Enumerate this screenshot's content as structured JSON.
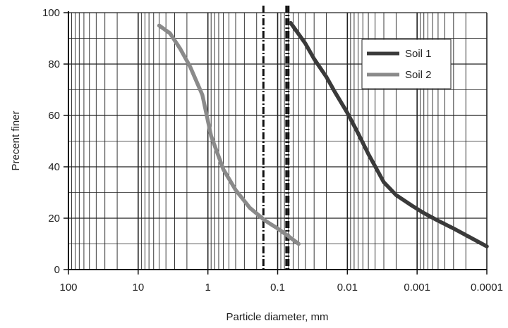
{
  "chart_data": {
    "type": "line",
    "xlabel": "Particle diameter, mm",
    "ylabel": "Precent finer",
    "x_scale": "log",
    "x_reversed": true,
    "xlim": [
      100,
      0.0001
    ],
    "ylim": [
      0,
      100
    ],
    "x_tick_labels": [
      "100",
      "10",
      "1",
      "0.1",
      "0.01",
      "0.001",
      "0.0001"
    ],
    "x_tick_values": [
      100,
      10,
      1,
      0.1,
      0.01,
      0.001,
      0.0001
    ],
    "y_tick_labels": [
      "0",
      "20",
      "40",
      "60",
      "80",
      "100"
    ],
    "y_tick_values": [
      0,
      20,
      40,
      60,
      80,
      100
    ],
    "grid": true,
    "legend_position": "top-right",
    "vertical_reference_lines": [
      {
        "x": 0.16,
        "style": "dash-dot"
      },
      {
        "x": 0.075,
        "style": "dash-dot"
      },
      {
        "x": 0.07,
        "style": "dash-dot"
      }
    ],
    "series": [
      {
        "name": "Soil 1",
        "color": "#3a3a3a",
        "x": [
          0.065,
          0.04,
          0.03,
          0.02,
          0.015,
          0.01,
          0.007,
          0.005,
          0.003,
          0.002,
          0.0012,
          0.0008,
          0.0005,
          0.0003,
          0.0001
        ],
        "y": [
          96,
          88,
          82,
          75,
          69,
          61,
          53,
          45,
          34,
          29,
          25,
          22,
          19,
          16,
          9
        ]
      },
      {
        "name": "Soil 2",
        "color": "#8a8a8a",
        "x": [
          5.0,
          3.5,
          2.5,
          1.8,
          1.2,
          0.9,
          0.6,
          0.4,
          0.25,
          0.15,
          0.1,
          0.07,
          0.05
        ],
        "y": [
          95,
          92,
          86,
          79,
          68,
          52,
          39,
          31,
          24,
          19,
          16,
          13,
          10
        ]
      }
    ]
  }
}
